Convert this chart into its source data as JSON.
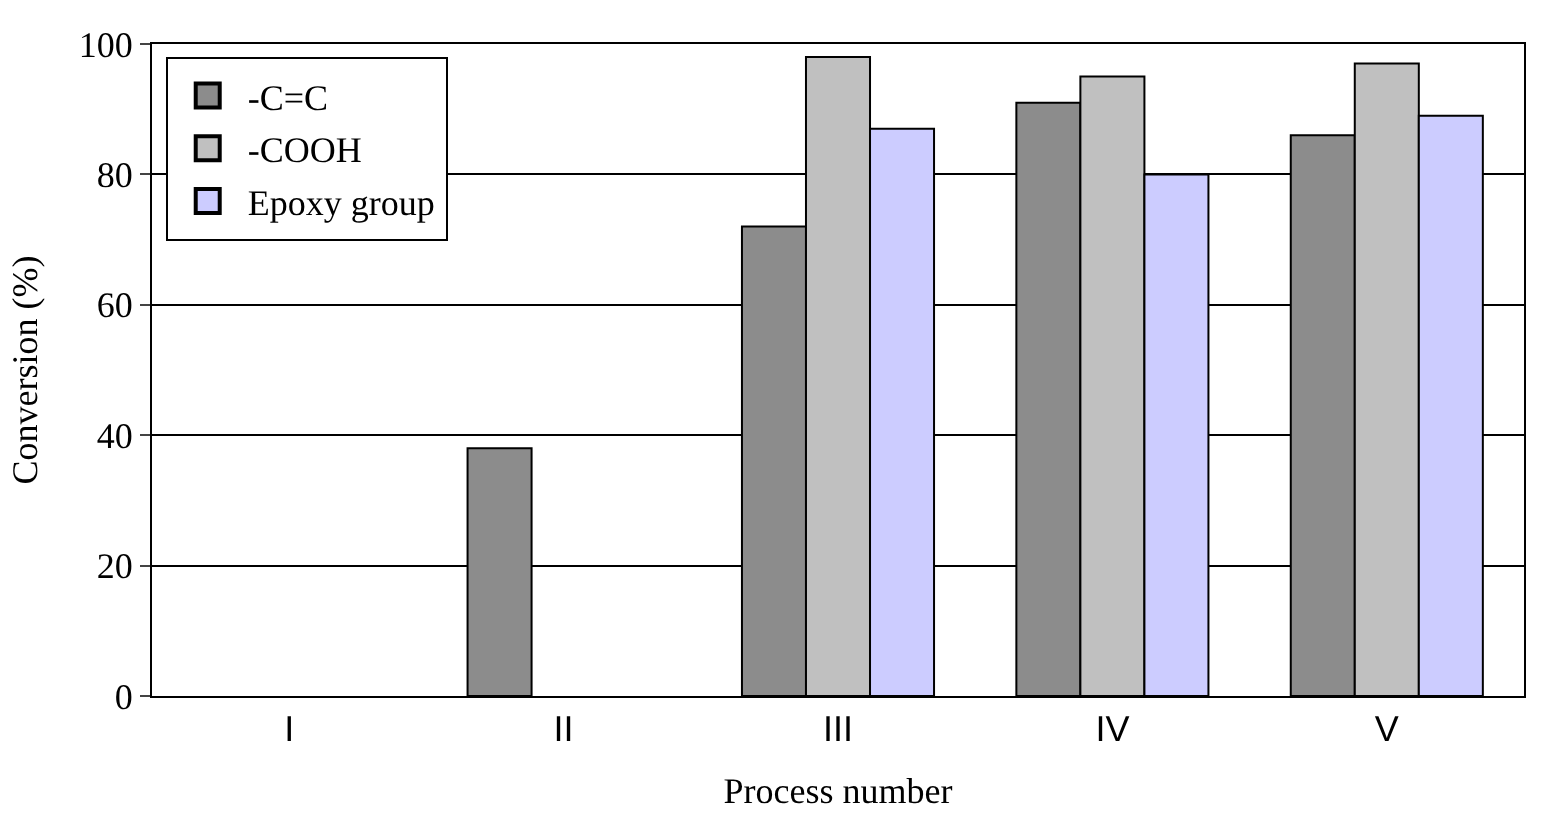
{
  "chart_data": {
    "type": "bar",
    "xlabel": "Process number",
    "ylabel": "Conversion (%)",
    "categories": [
      "I",
      "II",
      "III",
      "IV",
      "V"
    ],
    "series": [
      {
        "name": "-C=C",
        "color": "#8c8c8c",
        "values": [
          null,
          38,
          72,
          91,
          86
        ]
      },
      {
        "name": "-COOH",
        "color": "#c0c0c0",
        "values": [
          null,
          null,
          98,
          95,
          97
        ]
      },
      {
        "name": "Epoxy group",
        "color": "#ccccff",
        "values": [
          null,
          null,
          87,
          80,
          89
        ]
      }
    ],
    "ylim": [
      0,
      100
    ],
    "yticks": [
      0,
      20,
      40,
      60,
      80,
      100
    ],
    "grid": "y",
    "legend": "top left"
  }
}
